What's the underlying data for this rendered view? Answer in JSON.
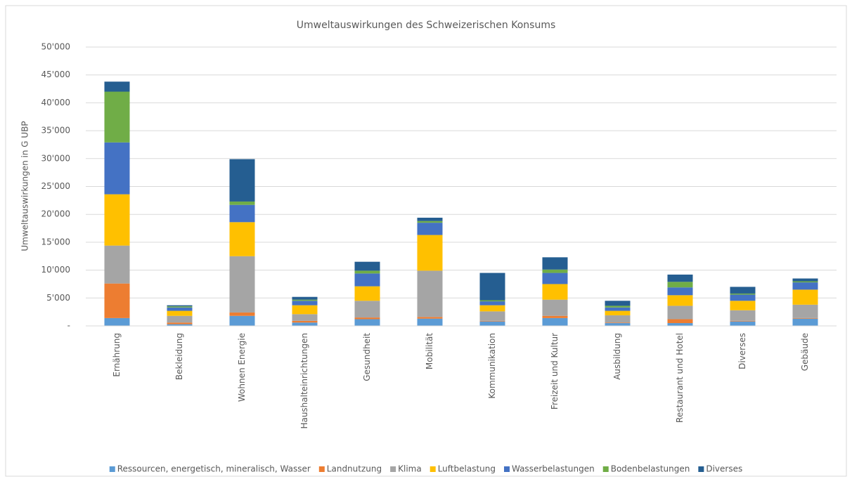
{
  "chart_data": {
    "type": "stacked_bar",
    "title": "Umweltauswirkungen des Schweizerischen Konsums",
    "y_label": "Umweltauswirkungen in G UBP",
    "categories": [
      "Ernährung",
      "Bekleidung",
      "Wohnen Energie",
      "Haushalteinrichtungen",
      "Gesundheit",
      "Mobilität",
      "Kommunikation",
      "Freizeit und Kultur",
      "Ausbildung",
      "Restaurant und Hotel",
      "Diverses",
      "Gebäude"
    ],
    "series": [
      {
        "name": "Ressourcen, energetisch, mineralisch, Wasser",
        "color": "#5b9bd5",
        "values": [
          1400,
          300,
          1800,
          600,
          1200,
          1300,
          800,
          1400,
          500,
          500,
          800,
          1300
        ]
      },
      {
        "name": "Landnutzung",
        "color": "#ed7d31",
        "values": [
          6200,
          300,
          600,
          300,
          300,
          300,
          100,
          400,
          100,
          700,
          100,
          100
        ]
      },
      {
        "name": "Klima",
        "color": "#a5a5a5",
        "values": [
          6800,
          1200,
          10100,
          1200,
          3000,
          8300,
          1700,
          2900,
          1300,
          2400,
          1900,
          2400
        ]
      },
      {
        "name": "Luftbelastung",
        "color": "#ffc000",
        "values": [
          9200,
          900,
          6100,
          1600,
          2600,
          6400,
          1100,
          2800,
          800,
          1900,
          1700,
          2700
        ]
      },
      {
        "name": "Wasserbelastungen",
        "color": "#4472c4",
        "values": [
          9300,
          600,
          3100,
          800,
          2300,
          2200,
          700,
          2000,
          600,
          1400,
          1100,
          1300
        ]
      },
      {
        "name": "Bodenbelastungen",
        "color": "#70ad47",
        "values": [
          9100,
          200,
          600,
          200,
          500,
          300,
          200,
          600,
          300,
          1000,
          200,
          200
        ]
      },
      {
        "name": "Diverses",
        "color": "#255e91",
        "values": [
          1800,
          200,
          7600,
          500,
          1600,
          600,
          4900,
          2200,
          900,
          1300,
          1200,
          500
        ]
      }
    ],
    "ylim": [
      0,
      50000
    ],
    "yticks": [
      {
        "value": 0,
        "label": "-"
      },
      {
        "value": 5000,
        "label": "5'000"
      },
      {
        "value": 10000,
        "label": "10'000"
      },
      {
        "value": 15000,
        "label": "15'000"
      },
      {
        "value": 20000,
        "label": "20'000"
      },
      {
        "value": 25000,
        "label": "25'000"
      },
      {
        "value": 30000,
        "label": "30'000"
      },
      {
        "value": 35000,
        "label": "35'000"
      },
      {
        "value": 40000,
        "label": "40'000"
      },
      {
        "value": 45000,
        "label": "45'000"
      },
      {
        "value": 50000,
        "label": "50'000"
      }
    ],
    "grid": true,
    "legend": "bottom"
  }
}
